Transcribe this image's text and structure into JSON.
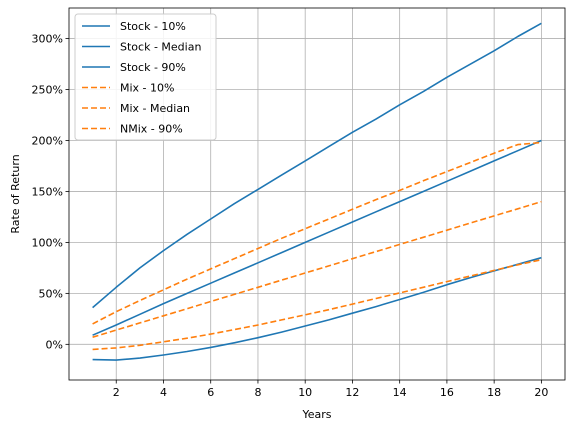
{
  "chart_data": {
    "type": "line",
    "title": "",
    "xlabel": "Years",
    "ylabel": "Rate of Return",
    "xlim": [
      0,
      21
    ],
    "ylim": [
      -35,
      330
    ],
    "grid": true,
    "legend_position": "top-left",
    "x_ticks": [
      2,
      4,
      6,
      8,
      10,
      12,
      14,
      16,
      18,
      20
    ],
    "x_tick_labels": [
      "2",
      "4",
      "6",
      "8",
      "10",
      "12",
      "14",
      "16",
      "18",
      "20"
    ],
    "y_ticks": [
      0,
      50,
      100,
      150,
      200,
      250,
      300
    ],
    "y_tick_labels": [
      "0%",
      "50%",
      "100%",
      "150%",
      "200%",
      "250%",
      "300%"
    ],
    "x": [
      1,
      2,
      3,
      4,
      5,
      6,
      7,
      8,
      9,
      10,
      11,
      12,
      13,
      14,
      15,
      16,
      17,
      18,
      19,
      20
    ],
    "series": [
      {
        "name": "Stock - 10%",
        "color": "#1f77b4",
        "dash": "solid",
        "values": [
          -15,
          -15.5,
          -13.5,
          -10.5,
          -7,
          -3,
          1.5,
          6.5,
          12,
          18,
          24,
          30.5,
          37,
          44,
          51,
          58.5,
          65.5,
          72,
          78.5,
          85
        ]
      },
      {
        "name": "Stock - Median",
        "color": "#1f77b4",
        "dash": "solid",
        "values": [
          9,
          19,
          29.5,
          40,
          50,
          60,
          70,
          80,
          90,
          100,
          110,
          120,
          130,
          140,
          150,
          160,
          170,
          180,
          190,
          200
        ]
      },
      {
        "name": "Stock - 90%",
        "color": "#1f77b4",
        "dash": "solid",
        "values": [
          36,
          56,
          75,
          92,
          108,
          123,
          138,
          152,
          166,
          180,
          194,
          208,
          221,
          235,
          248,
          262,
          275,
          288,
          302,
          315
        ]
      },
      {
        "name": "Mix - 10%",
        "color": "#ff7f0e",
        "dash": "dashed",
        "values": [
          -5,
          -3.5,
          -1,
          2.5,
          6,
          10,
          14.5,
          19,
          24,
          29,
          34,
          39.5,
          45,
          50.5,
          56,
          61.5,
          67,
          72.5,
          78,
          83
        ]
      },
      {
        "name": "Mix - Median",
        "color": "#ff7f0e",
        "dash": "dashed",
        "values": [
          7,
          14,
          21,
          28,
          35,
          42,
          49,
          56,
          63,
          70,
          77,
          84,
          91,
          98,
          105,
          112,
          119,
          126,
          133,
          140
        ]
      },
      {
        "name": "NMix - 90%",
        "color": "#ff7f0e",
        "dash": "dashed",
        "values": [
          20,
          32,
          43,
          53.5,
          64,
          74,
          84,
          94,
          104,
          113.5,
          123,
          132.5,
          142,
          151,
          160.5,
          169.5,
          178.5,
          187.5,
          196,
          198
        ]
      }
    ]
  }
}
